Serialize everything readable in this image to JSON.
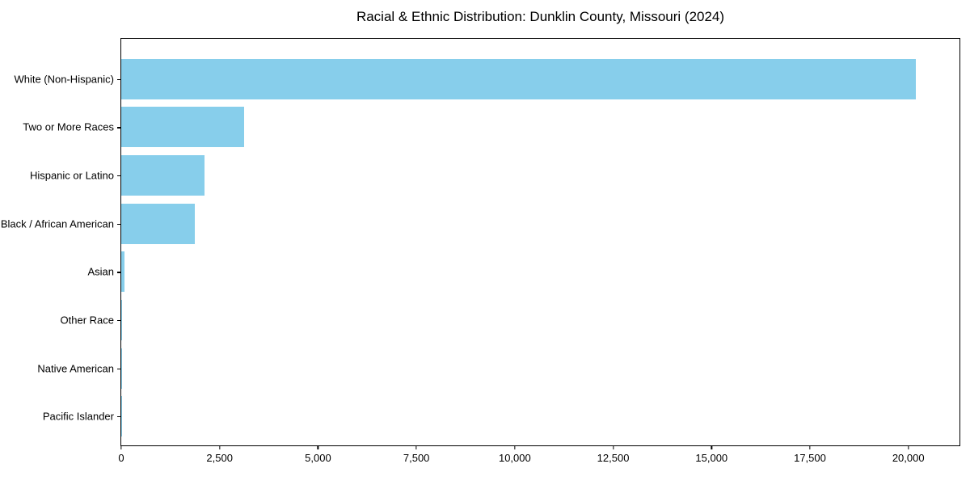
{
  "chart_data": {
    "type": "bar",
    "orientation": "horizontal",
    "title": "Racial & Ethnic Distribution: Dunklin County, Missouri (2024)",
    "categories": [
      "White (Non-Hispanic)",
      "Two or More Races",
      "Hispanic or Latino",
      "Black / African American",
      "Asian",
      "Other Race",
      "Native American",
      "Pacific Islander"
    ],
    "values": [
      20200,
      3130,
      2110,
      1865,
      90,
      25,
      20,
      10
    ],
    "xlabel": "",
    "ylabel": "",
    "xlim": [
      0,
      21300
    ],
    "xticks": {
      "values": [
        0,
        2500,
        5000,
        7500,
        10000,
        12500,
        15000,
        17500,
        20000
      ],
      "labels": [
        "0",
        "2,500",
        "5,000",
        "7,500",
        "10,000",
        "12,500",
        "15,000",
        "17,500",
        "20,000"
      ]
    },
    "grid": false,
    "legend": null,
    "bar_color": "#87CEEB",
    "frame_color": "#000000"
  }
}
